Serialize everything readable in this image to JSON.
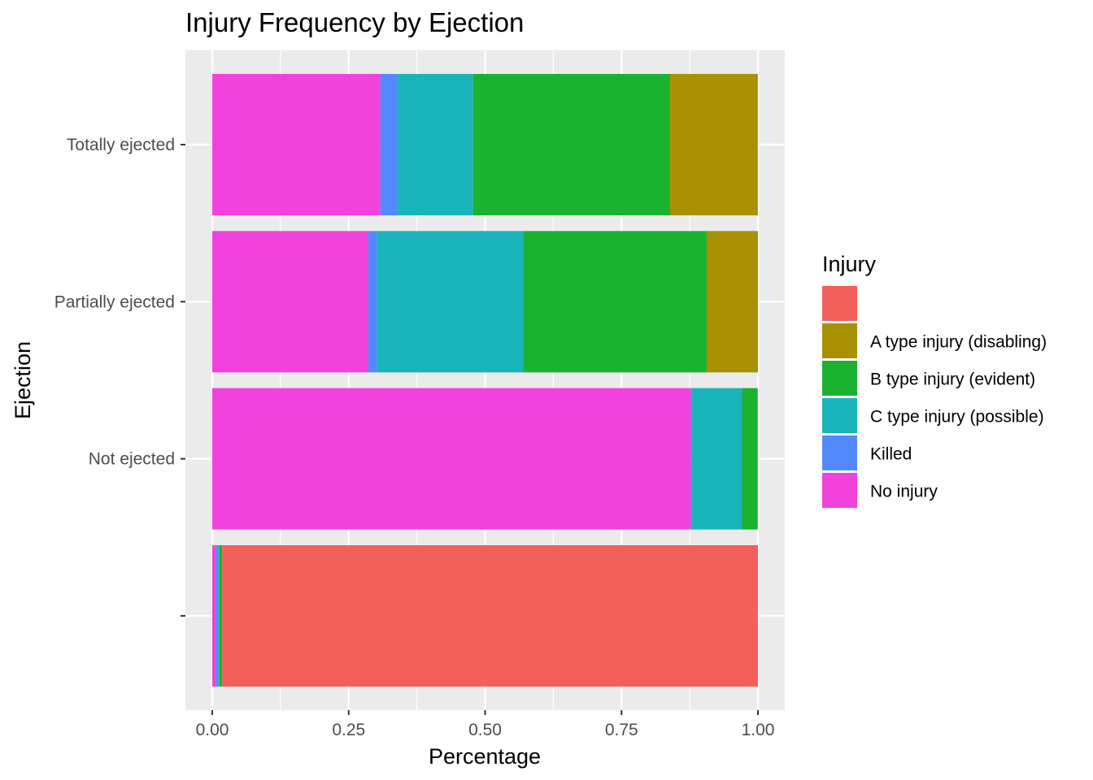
{
  "chart_data": {
    "type": "bar",
    "orientation": "horizontal",
    "stacked": true,
    "title": "Injury Frequency by Ejection",
    "xlabel": "Percentage",
    "ylabel": "Ejection",
    "xlim": [
      0,
      1
    ],
    "xticks": [
      "0.00",
      "0.25",
      "0.50",
      "0.75",
      "1.00"
    ],
    "grid": true,
    "categories": [
      "",
      "Not ejected",
      "Partially ejected",
      "Totally ejected"
    ],
    "series": [
      {
        "name": "No injury",
        "color": "#F142DC",
        "values": [
          0.007,
          0.877,
          0.286,
          0.308
        ]
      },
      {
        "name": "Killed",
        "color": "#528AFC",
        "values": [
          0.004,
          0.001,
          0.016,
          0.032
        ]
      },
      {
        "name": "C type injury (possible)",
        "color": "#19B4B9",
        "values": [
          0.002,
          0.093,
          0.268,
          0.138
        ]
      },
      {
        "name": "B type injury (evident)",
        "color": "#1BB131",
        "values": [
          0.005,
          0.028,
          0.336,
          0.361
        ]
      },
      {
        "name": "A type injury (disabling)",
        "color": "#A89103",
        "values": [
          0.0,
          0.001,
          0.094,
          0.16
        ]
      },
      {
        "name": "",
        "color": "#F3605B",
        "values": [
          0.982,
          0.0,
          0.0,
          0.001
        ]
      }
    ],
    "legend": {
      "title": "Injury",
      "position": "right",
      "order": [
        "",
        "A type injury (disabling)",
        "B type injury (evident)",
        "C type injury (possible)",
        "Killed",
        "No injury"
      ]
    }
  }
}
